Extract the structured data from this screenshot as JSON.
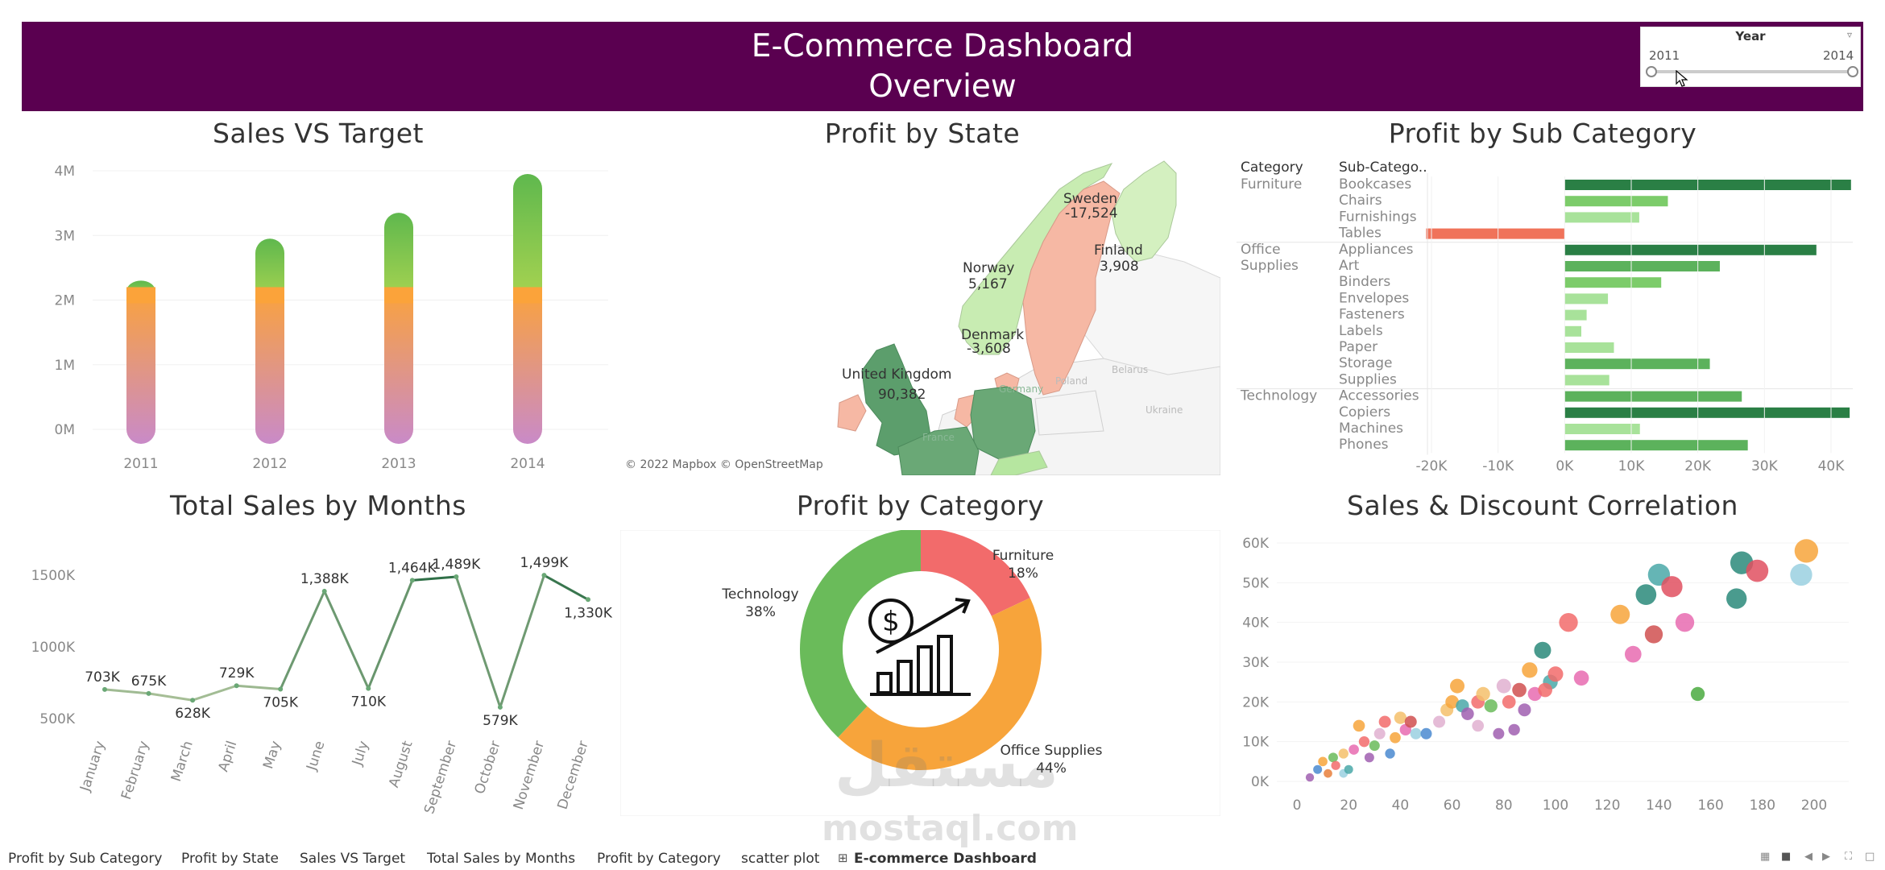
{
  "header": {
    "title_line1": "E-Commerce Dashboard",
    "title_line2": "Overview"
  },
  "year_filter": {
    "label": "Year",
    "min": "2011",
    "max": "2014"
  },
  "colors": {
    "header_bg": "#5a0050",
    "positive": "#2d8a4b",
    "negative": "#f0735a",
    "orange": "#f7a43b",
    "light_green": "#a8e29a"
  },
  "sales_vs_target": {
    "title": "Sales VS Target",
    "chart_data": {
      "type": "bar",
      "categories": [
        "2011",
        "2012",
        "2013",
        "2014"
      ],
      "series": [
        {
          "values": [
            2.3,
            2.95,
            3.35,
            3.95
          ]
        }
      ],
      "target": 2.2,
      "yticks": [
        "0M",
        "1M",
        "2M",
        "3M",
        "4M"
      ],
      "ylim": [
        0,
        4.2
      ]
    }
  },
  "profit_by_state": {
    "title": "Profit by State",
    "attribution": "© 2022 Mapbox © OpenStreetMap",
    "regions": [
      {
        "name": "Sweden",
        "value": "-17,524"
      },
      {
        "name": "Finland",
        "value": "3,908"
      },
      {
        "name": "Norway",
        "value": "5,167"
      },
      {
        "name": "Denmark",
        "value": "-3,608"
      },
      {
        "name": "United Kingdom",
        "value": "90,382"
      }
    ],
    "base_labels": [
      "Poland",
      "Belarus",
      "Ukraine",
      "Germany",
      "France"
    ]
  },
  "profit_by_subcategory": {
    "title": "Profit by Sub Category",
    "col_category": "Category",
    "col_subcategory": "Sub-Catego..",
    "chart_data": {
      "type": "bar",
      "groups": [
        {
          "category": "Furniture",
          "items": [
            {
              "name": "Bookcases",
              "value": 43000
            },
            {
              "name": "Chairs",
              "value": 15500
            },
            {
              "name": "Furnishings",
              "value": 11200
            },
            {
              "name": "Tables",
              "value": -20800
            }
          ]
        },
        {
          "category": "Office Supplies",
          "items": [
            {
              "name": "Appliances",
              "value": 37800
            },
            {
              "name": "Art",
              "value": 23300
            },
            {
              "name": "Binders",
              "value": 14500
            },
            {
              "name": "Envelopes",
              "value": 6500
            },
            {
              "name": "Fasteners",
              "value": 3300
            },
            {
              "name": "Labels",
              "value": 2500
            },
            {
              "name": "Paper",
              "value": 7400
            },
            {
              "name": "Storage",
              "value": 21800
            },
            {
              "name": "Supplies",
              "value": 6700
            }
          ]
        },
        {
          "category": "Technology",
          "items": [
            {
              "name": "Accessories",
              "value": 26600
            },
            {
              "name": "Copiers",
              "value": 42800
            },
            {
              "name": "Machines",
              "value": 11300
            },
            {
              "name": "Phones",
              "value": 27500
            }
          ]
        }
      ],
      "xticks": [
        "-20K",
        "-10K",
        "0K",
        "10K",
        "20K",
        "30K",
        "40K"
      ],
      "xlim": [
        -20000,
        40000
      ]
    }
  },
  "total_sales_by_months": {
    "title": "Total Sales by Months",
    "chart_data": {
      "type": "line",
      "categories": [
        "January",
        "February",
        "March",
        "April",
        "May",
        "June",
        "July",
        "August",
        "September",
        "October",
        "November",
        "December"
      ],
      "values": [
        703,
        675,
        628,
        729,
        705,
        1388,
        710,
        1464,
        1489,
        579,
        1499,
        1330
      ],
      "value_labels": [
        "703K",
        "675K",
        "628K",
        "729K",
        "705K",
        "1,388K",
        "710K",
        "1,464K",
        "1,489K",
        "579K",
        "1,499K",
        "1,330K"
      ],
      "yticks": [
        "500K",
        "1000K",
        "1500K"
      ],
      "ylim": [
        400,
        1600
      ]
    }
  },
  "profit_by_category": {
    "title": "Profit by Category",
    "chart_data": {
      "type": "pie",
      "slices": [
        {
          "name": "Furniture",
          "value": 18,
          "label": "18%",
          "color": "#f26b6b"
        },
        {
          "name": "Office Supplies",
          "value": 44,
          "label": "44%",
          "color": "#f7a43b"
        },
        {
          "name": "Technology",
          "value": 38,
          "label": "38%",
          "color": "#6abb5a"
        }
      ]
    }
  },
  "sales_discount": {
    "title": "Sales & Discount Correlation",
    "chart_data": {
      "type": "scatter",
      "xticks": [
        "0",
        "20",
        "40",
        "60",
        "80",
        "100",
        "120",
        "140",
        "160",
        "180",
        "200"
      ],
      "yticks": [
        "0K",
        "10K",
        "20K",
        "30K",
        "40K",
        "50K",
        "60K"
      ],
      "xlim": [
        -5,
        210
      ],
      "ylim": [
        -2,
        62
      ],
      "points": [
        [
          5,
          1,
          "#a05fb0"
        ],
        [
          8,
          3,
          "#4a8ad0"
        ],
        [
          10,
          5,
          "#f7a43b"
        ],
        [
          12,
          2,
          "#e87f3c"
        ],
        [
          14,
          6,
          "#6abb5a"
        ],
        [
          15,
          4,
          "#f26b6b"
        ],
        [
          18,
          7,
          "#f5c06b"
        ],
        [
          18,
          2,
          "#9ad0e0"
        ],
        [
          20,
          3,
          "#4aa8a8"
        ],
        [
          22,
          8,
          "#e86bb0"
        ],
        [
          24,
          14,
          "#f7a43b"
        ],
        [
          26,
          10,
          "#f26b6b"
        ],
        [
          28,
          6,
          "#a05fb0"
        ],
        [
          30,
          9,
          "#6abb5a"
        ],
        [
          32,
          12,
          "#e0b0d0"
        ],
        [
          34,
          15,
          "#f26b6b"
        ],
        [
          36,
          7,
          "#4a8ad0"
        ],
        [
          38,
          11,
          "#f7a43b"
        ],
        [
          40,
          16,
          "#f5c06b"
        ],
        [
          42,
          13,
          "#e86bb0"
        ],
        [
          44,
          15,
          "#d05050"
        ],
        [
          46,
          12,
          "#9ad0e0"
        ],
        [
          50,
          12,
          "#4a8ad0"
        ],
        [
          55,
          15,
          "#e0b0d0"
        ],
        [
          58,
          18,
          "#f5c06b"
        ],
        [
          60,
          20,
          "#f7a43b"
        ],
        [
          62,
          24,
          "#f7a43b"
        ],
        [
          64,
          19,
          "#4aa8a8"
        ],
        [
          66,
          17,
          "#a05fb0"
        ],
        [
          70,
          20,
          "#f26b6b"
        ],
        [
          72,
          22,
          "#f5c06b"
        ],
        [
          75,
          19,
          "#6abb5a"
        ],
        [
          78,
          12,
          "#a05fb0"
        ],
        [
          80,
          24,
          "#e0b0d0"
        ],
        [
          82,
          20,
          "#f26b6b"
        ],
        [
          84,
          13,
          "#a05fb0"
        ],
        [
          86,
          23,
          "#d05050"
        ],
        [
          88,
          18,
          "#a05fb0"
        ],
        [
          90,
          28,
          "#f7a43b"
        ],
        [
          92,
          22,
          "#e86bb0"
        ],
        [
          95,
          33,
          "#2a8a7a"
        ],
        [
          98,
          25,
          "#4aa8a8"
        ],
        [
          100,
          27,
          "#f26b6b"
        ],
        [
          105,
          40,
          "#f26b6b"
        ],
        [
          110,
          26,
          "#e86bb0"
        ],
        [
          125,
          42,
          "#f7a43b"
        ],
        [
          130,
          32,
          "#e86bb0"
        ],
        [
          135,
          47,
          "#2a8a7a"
        ],
        [
          138,
          37,
          "#d05050"
        ],
        [
          140,
          52,
          "#4aa8a8"
        ],
        [
          145,
          49,
          "#e05060"
        ],
        [
          150,
          40,
          "#e86bb0"
        ],
        [
          155,
          22,
          "#4aaa40"
        ],
        [
          170,
          46,
          "#2a8a7a"
        ],
        [
          172,
          55,
          "#2a8a7a"
        ],
        [
          178,
          53,
          "#e05060"
        ],
        [
          195,
          52,
          "#9ad0e0"
        ],
        [
          197,
          58,
          "#f7a43b"
        ],
        [
          96,
          23,
          "#f26b6b"
        ],
        [
          70,
          14,
          "#e0b0d0"
        ]
      ]
    }
  },
  "watermark": {
    "arabic": "مستقل",
    "latin": "mostaql.com"
  },
  "tabs": [
    "Profit by Sub Category",
    "Profit by State",
    "Sales VS Target",
    "Total Sales by Months",
    "Profit by Category",
    "scatter plot",
    "E-commerce Dashboard"
  ]
}
